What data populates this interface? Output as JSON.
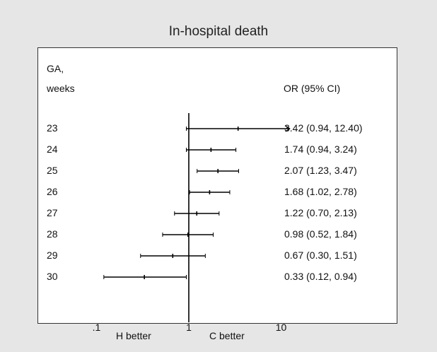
{
  "chart_data": {
    "type": "forest",
    "title": "In-hospital death",
    "row_header": [
      "GA,",
      "weeks"
    ],
    "value_header": "OR (95% CI)",
    "rows": [
      {
        "label": "23",
        "or": 3.42,
        "lo": 0.94,
        "hi": 12.4,
        "text": "3.42 (0.94, 12.40)",
        "arrow_right": true
      },
      {
        "label": "24",
        "or": 1.74,
        "lo": 0.94,
        "hi": 3.24,
        "text": "1.74 (0.94, 3.24)"
      },
      {
        "label": "25",
        "or": 2.07,
        "lo": 1.23,
        "hi": 3.47,
        "text": "2.07 (1.23, 3.47)"
      },
      {
        "label": "26",
        "or": 1.68,
        "lo": 1.02,
        "hi": 2.78,
        "text": "1.68 (1.02, 2.78)"
      },
      {
        "label": "27",
        "or": 1.22,
        "lo": 0.7,
        "hi": 2.13,
        "text": "1.22 (0.70, 2.13)"
      },
      {
        "label": "28",
        "or": 0.98,
        "lo": 0.52,
        "hi": 1.84,
        "text": "0.98 (0.52, 1.84)"
      },
      {
        "label": "29",
        "or": 0.67,
        "lo": 0.3,
        "hi": 1.51,
        "text": "0.67 (0.30, 1.51)"
      },
      {
        "label": "30",
        "or": 0.33,
        "lo": 0.12,
        "hi": 0.94,
        "text": "0.33 (0.12, 0.94)"
      }
    ],
    "x_scale": "log",
    "reference_line": 1,
    "xticks": [
      {
        "value": 0.1,
        "label": ".1"
      },
      {
        "value": 1,
        "label": "1"
      },
      {
        "value": 10,
        "label": "10"
      }
    ],
    "side_labels": {
      "left": "H better",
      "right": "C better"
    }
  }
}
